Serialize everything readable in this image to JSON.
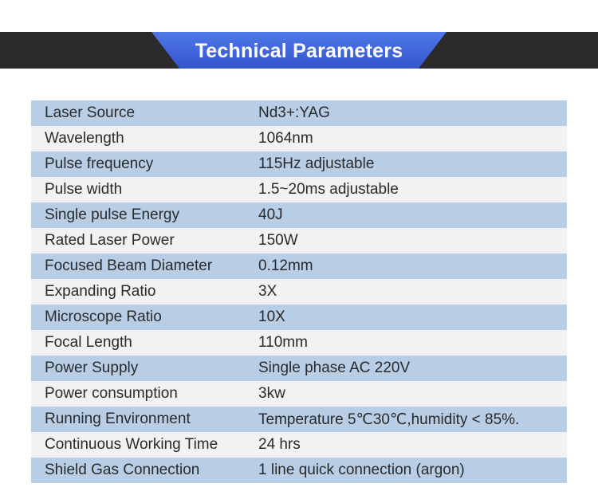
{
  "header": {
    "title": "Technical Parameters"
  },
  "rows": [
    {
      "label": "Laser Source",
      "value": "Nd3+:YAG"
    },
    {
      "label": "Wavelength",
      "value": "1064nm"
    },
    {
      "label": "Pulse frequency",
      "value": "115Hz adjustable"
    },
    {
      "label": "Pulse width",
      "value": "1.5~20ms adjustable"
    },
    {
      "label": "Single pulse Energy",
      "value": "40J"
    },
    {
      "label": "Rated Laser Power",
      "value": "150W"
    },
    {
      "label": "Focused Beam Diameter",
      "value": "0.12mm"
    },
    {
      "label": "Expanding Ratio",
      "value": "3X"
    },
    {
      "label": "Microscope Ratio",
      "value": "10X"
    },
    {
      "label": "Focal Length",
      "value": "110mm"
    },
    {
      "label": "Power Supply",
      "value": "Single phase AC 220V"
    },
    {
      "label": "Power consumption",
      "value": "3kw"
    },
    {
      "label": "Running Environment",
      "value": "Temperature 5℃30℃,humidity < 85%."
    },
    {
      "label": "Continuous Working Time",
      "value": "24 hrs"
    },
    {
      "label": "Shield Gas Connection",
      "value": "1 line quick connection (argon)"
    }
  ],
  "colors": {
    "header_bar": "#2b2b2b",
    "header_badge": "#3f66dc",
    "row_odd": "#b8cde6",
    "row_even": "#f2f2f2",
    "text": "#2a2a2a"
  }
}
